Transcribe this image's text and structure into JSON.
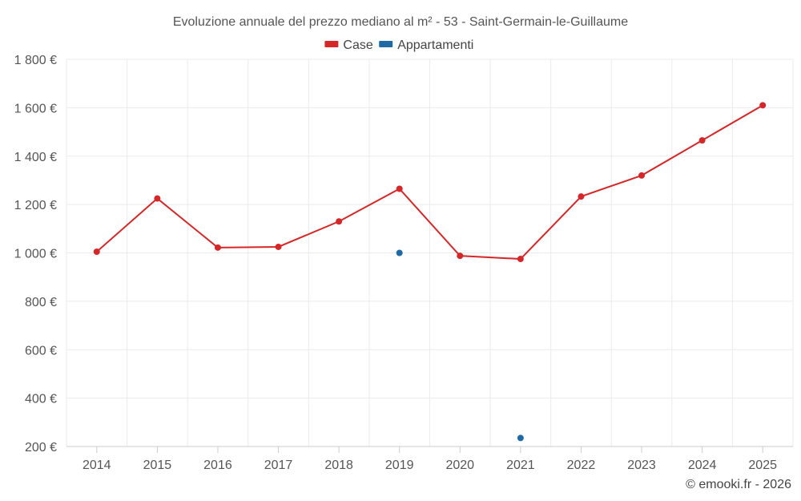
{
  "chart_data": {
    "type": "line",
    "title": "Evoluzione annuale del prezzo mediano al m² - 53 - Saint-Germain-le-Guillaume",
    "categories": [
      "2014",
      "2015",
      "2016",
      "2017",
      "2018",
      "2019",
      "2020",
      "2021",
      "2022",
      "2023",
      "2024",
      "2025"
    ],
    "ylim": [
      200,
      1800
    ],
    "yticks": [
      200,
      400,
      600,
      800,
      1000,
      1200,
      1400,
      1600,
      1800
    ],
    "ytick_labels": [
      "200 €",
      "400 €",
      "600 €",
      "800 €",
      "1 000 €",
      "1 200 €",
      "1 400 €",
      "1 600 €",
      "1 800 €"
    ],
    "grid": true,
    "legend_position": "top-center",
    "series": [
      {
        "name": "Case",
        "color": "#d62728",
        "line": true,
        "values": [
          1005,
          1225,
          1022,
          1025,
          1130,
          1265,
          988,
          975,
          1233,
          1320,
          1465,
          1610
        ]
      },
      {
        "name": "Appartamenti",
        "color": "#1f6aa5",
        "line": false,
        "values": [
          null,
          null,
          null,
          null,
          null,
          1000,
          null,
          235,
          null,
          null,
          null,
          null
        ]
      }
    ]
  },
  "credit": "© emooki.fr - 2026"
}
